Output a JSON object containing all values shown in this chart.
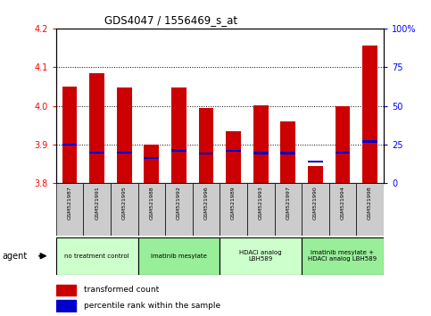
{
  "title": "GDS4047 / 1556469_s_at",
  "samples": [
    "GSM521987",
    "GSM521991",
    "GSM521995",
    "GSM521988",
    "GSM521992",
    "GSM521996",
    "GSM521989",
    "GSM521993",
    "GSM521997",
    "GSM521990",
    "GSM521994",
    "GSM521998"
  ],
  "bar_values": [
    4.05,
    4.085,
    4.048,
    3.9,
    4.048,
    3.995,
    3.935,
    4.002,
    3.96,
    3.845,
    4.0,
    4.155
  ],
  "percentile_values": [
    3.9,
    3.88,
    3.88,
    3.865,
    3.885,
    3.876,
    3.884,
    3.878,
    3.878,
    3.856,
    3.88,
    3.908
  ],
  "ylim": [
    3.8,
    4.2
  ],
  "yticks_left": [
    3.8,
    3.9,
    4.0,
    4.1,
    4.2
  ],
  "yticks_right": [
    0,
    25,
    50,
    75,
    100
  ],
  "bar_color": "#cc0000",
  "percentile_color": "#0000cc",
  "groups": [
    {
      "label": "no treatment control",
      "start": 0,
      "end": 3,
      "color": "#ccffcc"
    },
    {
      "label": "imatinib mesylate",
      "start": 3,
      "end": 6,
      "color": "#99ee99"
    },
    {
      "label": "HDACi analog\nLBH589",
      "start": 6,
      "end": 9,
      "color": "#ccffcc"
    },
    {
      "label": "imatinib mesylate +\nHDACi analog LBH589",
      "start": 9,
      "end": 12,
      "color": "#99ee99"
    }
  ],
  "agent_label": "agent",
  "legend_items": [
    {
      "label": "transformed count",
      "color": "#cc0000"
    },
    {
      "label": "percentile rank within the sample",
      "color": "#0000cc"
    }
  ],
  "background_color": "#ffffff",
  "bar_base": 3.8,
  "tick_bg_color": "#cccccc"
}
